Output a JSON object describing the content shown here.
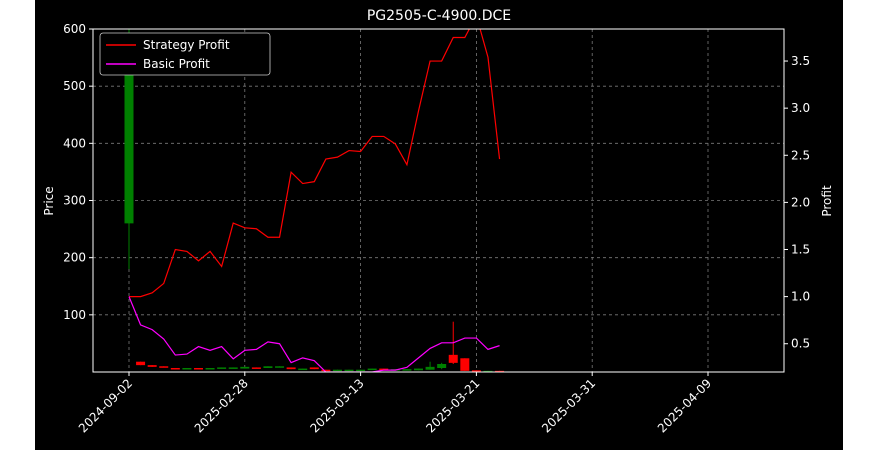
{
  "chart_data": {
    "type": "line",
    "title": "PG2505-C-4900.DCE",
    "ylabel_left": "Price",
    "ylabel_right": "Profit",
    "ylim_left": [
      0,
      600
    ],
    "ylim_right": [
      0.2,
      3.84
    ],
    "left_ticks": [
      100,
      200,
      300,
      400,
      500,
      600
    ],
    "right_ticks": [
      0.5,
      1.0,
      1.5,
      2.0,
      2.5,
      3.0,
      3.5
    ],
    "x_tick_labels": [
      "2024-09-02",
      "2025-02-28",
      "2025-03-13",
      "2025-03-21",
      "2025-03-31",
      "2025-04-09"
    ],
    "x_tick_index": [
      0,
      10,
      20,
      30,
      40,
      50
    ],
    "grid": true,
    "legend_position": "upper-left",
    "series": [
      {
        "name": "Strategy Profit",
        "color": "#ff0000",
        "axis": "right",
        "values": [
          1.0,
          1.0,
          1.04,
          1.14,
          1.5,
          1.48,
          1.38,
          1.48,
          1.32,
          1.78,
          1.73,
          1.72,
          1.63,
          1.63,
          2.32,
          2.2,
          2.22,
          2.46,
          2.48,
          2.55,
          2.54,
          2.7,
          2.7,
          2.62,
          2.4,
          2.97,
          3.5,
          3.5,
          3.75,
          3.75,
          3.98,
          3.54,
          2.46
        ]
      },
      {
        "name": "Basic Profit",
        "color": "#ff00ff",
        "axis": "right",
        "values": [
          1.0,
          0.7,
          0.65,
          0.55,
          0.38,
          0.39,
          0.47,
          0.43,
          0.47,
          0.34,
          0.43,
          0.44,
          0.52,
          0.5,
          0.3,
          0.35,
          0.32,
          0.2,
          0.2,
          0.2,
          0.2,
          0.2,
          0.22,
          0.22,
          0.25,
          0.35,
          0.45,
          0.51,
          0.51,
          0.56,
          0.56,
          0.44,
          0.48
        ]
      }
    ],
    "candles": [
      {
        "i": 0,
        "open": 260,
        "close": 590,
        "high": 600,
        "low": 180
      },
      {
        "i": 1,
        "open": 18,
        "close": 12,
        "high": 18,
        "low": 12
      },
      {
        "i": 2,
        "open": 12,
        "close": 9,
        "high": 12,
        "low": 9
      },
      {
        "i": 3,
        "open": 10,
        "close": 8,
        "high": 10,
        "low": 8
      },
      {
        "i": 4,
        "open": 7,
        "close": 6,
        "high": 7,
        "low": 6
      },
      {
        "i": 5,
        "open": 6,
        "close": 7,
        "high": 7,
        "low": 6
      },
      {
        "i": 6,
        "open": 7,
        "close": 6,
        "high": 7,
        "low": 6
      },
      {
        "i": 7,
        "open": 6,
        "close": 7,
        "high": 7,
        "low": 6
      },
      {
        "i": 8,
        "open": 7,
        "close": 8,
        "high": 8,
        "low": 7
      },
      {
        "i": 9,
        "open": 6,
        "close": 8,
        "high": 8,
        "low": 6
      },
      {
        "i": 10,
        "open": 6,
        "close": 9,
        "high": 9,
        "low": 6
      },
      {
        "i": 11,
        "open": 8,
        "close": 7,
        "high": 8,
        "low": 7
      },
      {
        "i": 12,
        "open": 7,
        "close": 10,
        "high": 10,
        "low": 7
      },
      {
        "i": 13,
        "open": 8,
        "close": 10,
        "high": 10,
        "low": 8
      },
      {
        "i": 14,
        "open": 8,
        "close": 5,
        "high": 8,
        "low": 5
      },
      {
        "i": 15,
        "open": 5,
        "close": 6,
        "high": 6,
        "low": 5
      },
      {
        "i": 16,
        "open": 8,
        "close": 5,
        "high": 8,
        "low": 5
      },
      {
        "i": 17,
        "open": 4,
        "close": 3,
        "high": 4,
        "low": 3
      },
      {
        "i": 18,
        "open": 3,
        "close": 4,
        "high": 4,
        "low": 3
      },
      {
        "i": 19,
        "open": 3,
        "close": 4,
        "high": 4,
        "low": 3
      },
      {
        "i": 20,
        "open": 3,
        "close": 4,
        "high": 4,
        "low": 3
      },
      {
        "i": 21,
        "open": 4,
        "close": 6,
        "high": 6,
        "low": 4
      },
      {
        "i": 22,
        "open": 6,
        "close": 4,
        "high": 6,
        "low": 4
      },
      {
        "i": 23,
        "open": 4,
        "close": 5,
        "high": 5,
        "low": 4
      },
      {
        "i": 24,
        "open": 3,
        "close": 5,
        "high": 5,
        "low": 3
      },
      {
        "i": 25,
        "open": 3,
        "close": 6,
        "high": 6,
        "low": 3
      },
      {
        "i": 26,
        "open": 4,
        "close": 9,
        "high": 18,
        "low": 4
      },
      {
        "i": 27,
        "open": 7,
        "close": 14,
        "high": 16,
        "low": 5
      },
      {
        "i": 28,
        "open": 30,
        "close": 16,
        "high": 88,
        "low": 14
      },
      {
        "i": 29,
        "open": 24,
        "close": 2,
        "high": 24,
        "low": 2
      },
      {
        "i": 30,
        "open": 3,
        "close": 2,
        "high": 3,
        "low": 2
      },
      {
        "i": 31,
        "open": 1,
        "close": 2,
        "high": 2,
        "low": 1
      },
      {
        "i": 32,
        "open": 2,
        "close": 1,
        "high": 2,
        "low": 1
      }
    ],
    "up_color": "#ff0000",
    "down_color": "#008000"
  }
}
